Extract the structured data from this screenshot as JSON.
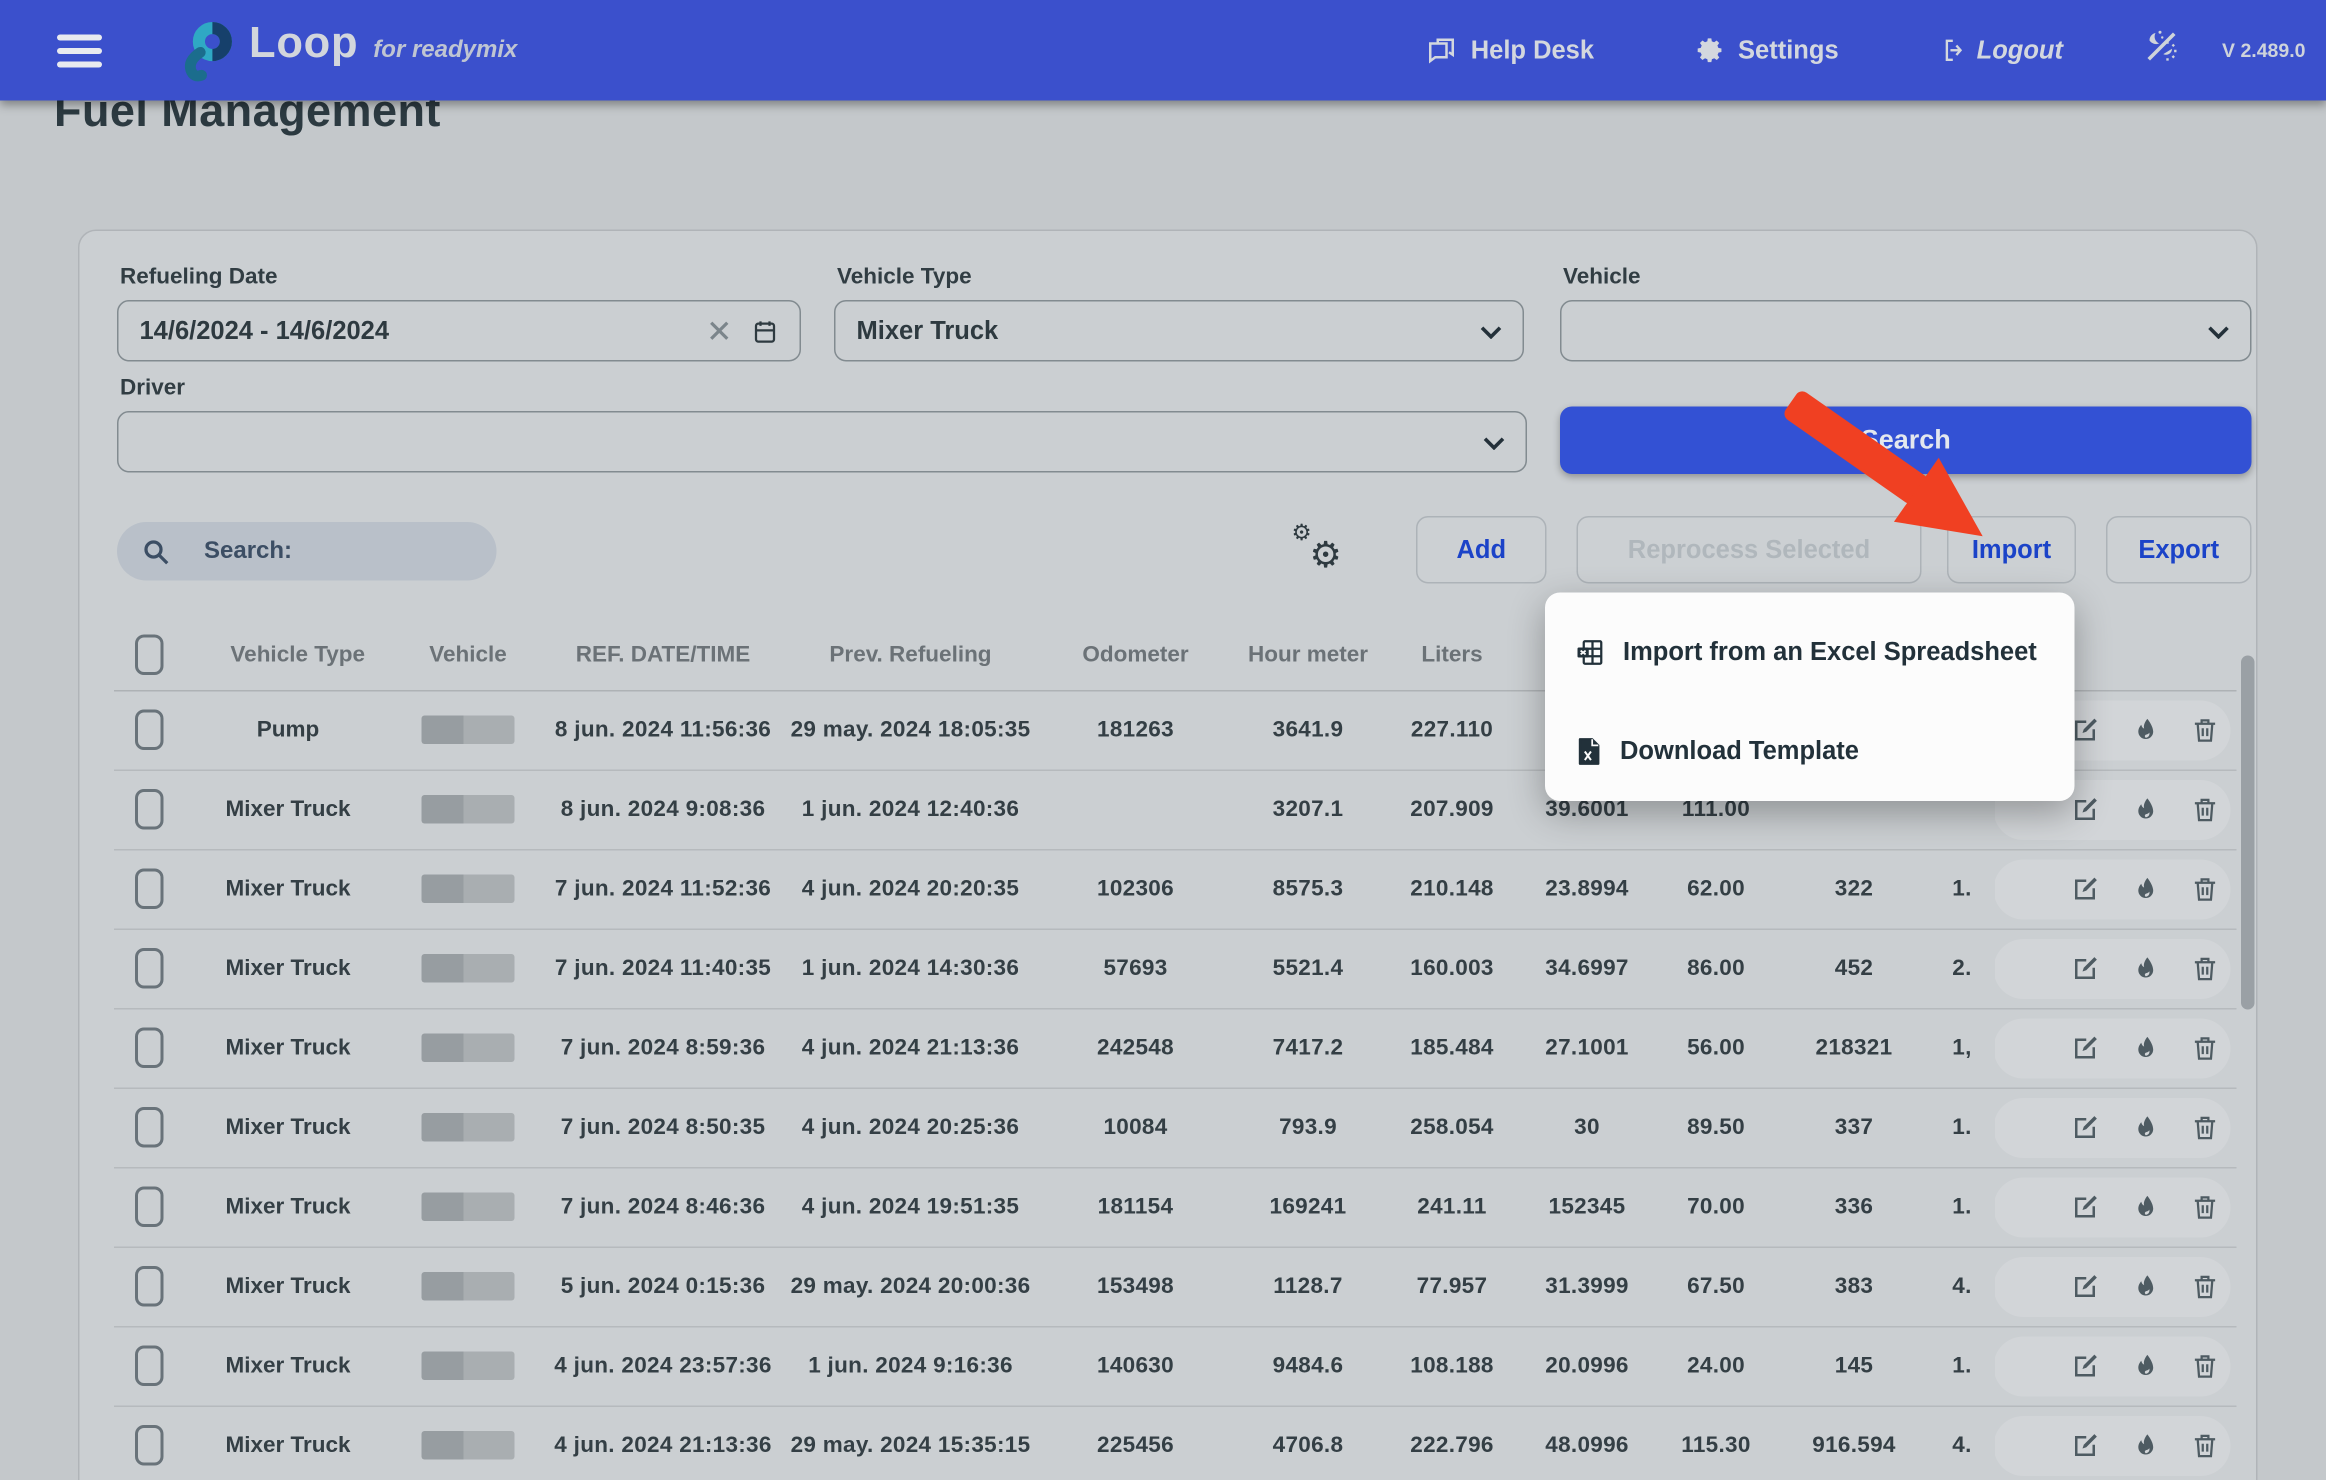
{
  "navbar": {
    "brand": "Loop",
    "brand_sub": "for readymix",
    "help_desk": "Help Desk",
    "settings": "Settings",
    "logout": "Logout",
    "version": "V 2.489.0"
  },
  "page": {
    "title": "Fuel Management"
  },
  "filters": {
    "refueling_date": {
      "label": "Refueling Date",
      "value": "14/6/2024 - 14/6/2024"
    },
    "vehicle_type": {
      "label": "Vehicle Type",
      "value": "Mixer Truck"
    },
    "vehicle": {
      "label": "Vehicle",
      "value": ""
    },
    "driver": {
      "label": "Driver",
      "value": ""
    },
    "search_button": "Search"
  },
  "toolbar": {
    "search_label": "Search:",
    "add": "Add",
    "reprocess": "Reprocess Selected",
    "import": "Import",
    "export": "Export"
  },
  "import_menu": {
    "items": [
      {
        "label": "Import from an Excel Spreadsheet",
        "icon": "excel-icon"
      },
      {
        "label": "Download Template",
        "icon": "file-excel-icon"
      }
    ]
  },
  "table": {
    "columns": [
      "",
      "Vehicle Type",
      "Vehicle",
      "REF. DATE/TIME",
      "Prev. Refueling",
      "Odometer",
      "Hour meter",
      "Liters",
      "",
      "",
      "",
      "",
      ""
    ],
    "rows": [
      {
        "vehicle_type": "Pump",
        "ref_datetime": "8 jun. 2024 11:56:36",
        "prev_refueling": "29 may. 2024 18:05:35",
        "odometer": "181263",
        "hour_meter": "3641.9",
        "liters": "227.110",
        "c8": "",
        "c9": "",
        "c10": "",
        "c11": ""
      },
      {
        "vehicle_type": "Mixer Truck",
        "ref_datetime": "8 jun. 2024 9:08:36",
        "prev_refueling": "1 jun. 2024 12:40:36",
        "odometer": "",
        "hour_meter": "3207.1",
        "liters": "207.909",
        "c8": "39.6001",
        "c9": "111.00",
        "c10": "",
        "c11": ""
      },
      {
        "vehicle_type": "Mixer Truck",
        "ref_datetime": "7 jun. 2024 11:52:36",
        "prev_refueling": "4 jun. 2024 20:20:35",
        "odometer": "102306",
        "hour_meter": "8575.3",
        "liters": "210.148",
        "c8": "23.8994",
        "c9": "62.00",
        "c10": "322",
        "c11": "1."
      },
      {
        "vehicle_type": "Mixer Truck",
        "ref_datetime": "7 jun. 2024 11:40:35",
        "prev_refueling": "1 jun. 2024 14:30:36",
        "odometer": "57693",
        "hour_meter": "5521.4",
        "liters": "160.003",
        "c8": "34.6997",
        "c9": "86.00",
        "c10": "452",
        "c11": "2."
      },
      {
        "vehicle_type": "Mixer Truck",
        "ref_datetime": "7 jun. 2024 8:59:36",
        "prev_refueling": "4 jun. 2024 21:13:36",
        "odometer": "242548",
        "hour_meter": "7417.2",
        "liters": "185.484",
        "c8": "27.1001",
        "c9": "56.00",
        "c10": "218321",
        "c11": "1,"
      },
      {
        "vehicle_type": "Mixer Truck",
        "ref_datetime": "7 jun. 2024 8:50:35",
        "prev_refueling": "4 jun. 2024 20:25:36",
        "odometer": "10084",
        "hour_meter": "793.9",
        "liters": "258.054",
        "c8": "30",
        "c9": "89.50",
        "c10": "337",
        "c11": "1."
      },
      {
        "vehicle_type": "Mixer Truck",
        "ref_datetime": "7 jun. 2024 8:46:36",
        "prev_refueling": "4 jun. 2024 19:51:35",
        "odometer": "181154",
        "hour_meter": "169241",
        "liters": "241.11",
        "c8": "152345",
        "c9": "70.00",
        "c10": "336",
        "c11": "1."
      },
      {
        "vehicle_type": "Mixer Truck",
        "ref_datetime": "5 jun. 2024 0:15:36",
        "prev_refueling": "29 may. 2024 20:00:36",
        "odometer": "153498",
        "hour_meter": "1128.7",
        "liters": "77.957",
        "c8": "31.3999",
        "c9": "67.50",
        "c10": "383",
        "c11": "4."
      },
      {
        "vehicle_type": "Mixer Truck",
        "ref_datetime": "4 jun. 2024 23:57:36",
        "prev_refueling": "1 jun. 2024 9:16:36",
        "odometer": "140630",
        "hour_meter": "9484.6",
        "liters": "108.188",
        "c8": "20.0996",
        "c9": "24.00",
        "c10": "145",
        "c11": "1."
      },
      {
        "vehicle_type": "Mixer Truck",
        "ref_datetime": "4 jun. 2024 21:13:36",
        "prev_refueling": "29 may. 2024 15:35:15",
        "odometer": "225456",
        "hour_meter": "4706.8",
        "liters": "222.796",
        "c8": "48.0996",
        "c9": "115.30",
        "c10": "916.594",
        "c11": "4."
      }
    ]
  },
  "colors": {
    "navbar": "#3b50cc",
    "primary_button": "#3351d4",
    "accent_text": "#1b43c8",
    "annotation_arrow": "#f04022",
    "page_bg": "#c4c8cb"
  }
}
